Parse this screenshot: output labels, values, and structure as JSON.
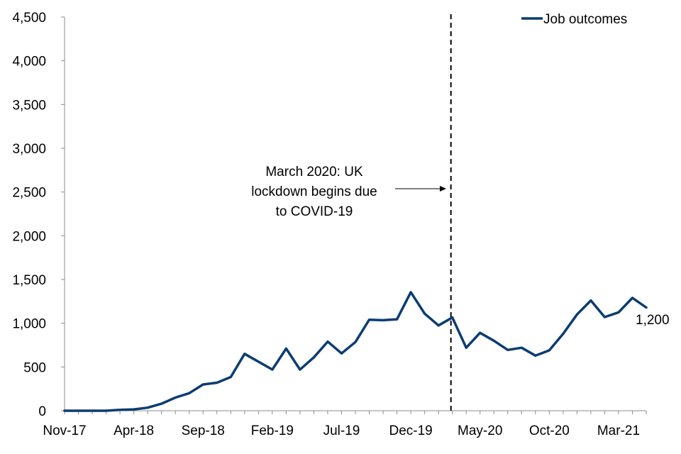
{
  "chart_data": {
    "type": "line",
    "title": "",
    "xlabel": "",
    "ylabel": "",
    "ylim": [
      0,
      4500
    ],
    "y_ticks": [
      "0",
      "500",
      "1,000",
      "1,500",
      "2,000",
      "2,500",
      "3,000",
      "3,500",
      "4,000",
      "4,500"
    ],
    "x": [
      "Nov-17",
      "Dec-17",
      "Jan-18",
      "Feb-18",
      "Mar-18",
      "Apr-18",
      "May-18",
      "Jun-18",
      "Jul-18",
      "Aug-18",
      "Sep-18",
      "Oct-18",
      "Nov-18",
      "Dec-18",
      "Jan-19",
      "Feb-19",
      "Mar-19",
      "Apr-19",
      "May-19",
      "Jun-19",
      "Jul-19",
      "Aug-19",
      "Sep-19",
      "Oct-19",
      "Nov-19",
      "Dec-19",
      "Jan-20",
      "Feb-20",
      "Mar-20",
      "Apr-20",
      "May-20",
      "Jun-20",
      "Jul-20",
      "Aug-20",
      "Sep-20",
      "Oct-20",
      "Nov-20",
      "Dec-20",
      "Jan-21",
      "Feb-21",
      "Mar-21",
      "Apr-21",
      "May-21"
    ],
    "x_tick_labels": [
      "Nov-17",
      "Apr-18",
      "Sep-18",
      "Feb-19",
      "Jul-19",
      "Dec-19",
      "May-20",
      "Oct-20",
      "Mar-21"
    ],
    "series": [
      {
        "name": "Job outcomes",
        "color": "#0b3c73",
        "values": [
          0,
          0,
          0,
          0,
          10,
          15,
          35,
          80,
          150,
          200,
          300,
          320,
          385,
          650,
          560,
          470,
          710,
          470,
          610,
          790,
          655,
          785,
          1040,
          1035,
          1045,
          1355,
          1110,
          975,
          1065,
          720,
          890,
          800,
          695,
          720,
          630,
          690,
          880,
          1100,
          1260,
          1070,
          1125,
          1290,
          1180
        ]
      }
    ],
    "end_label": "1,200",
    "legend": {
      "position": "top-right",
      "label": "Job outcomes"
    },
    "annotation": {
      "lines": [
        "March 2020: UK",
        "lockdown begins due",
        "to COVID-19"
      ],
      "marker_x": "Mar-20",
      "style": "dashed vertical line with arrow"
    },
    "grid": false
  }
}
